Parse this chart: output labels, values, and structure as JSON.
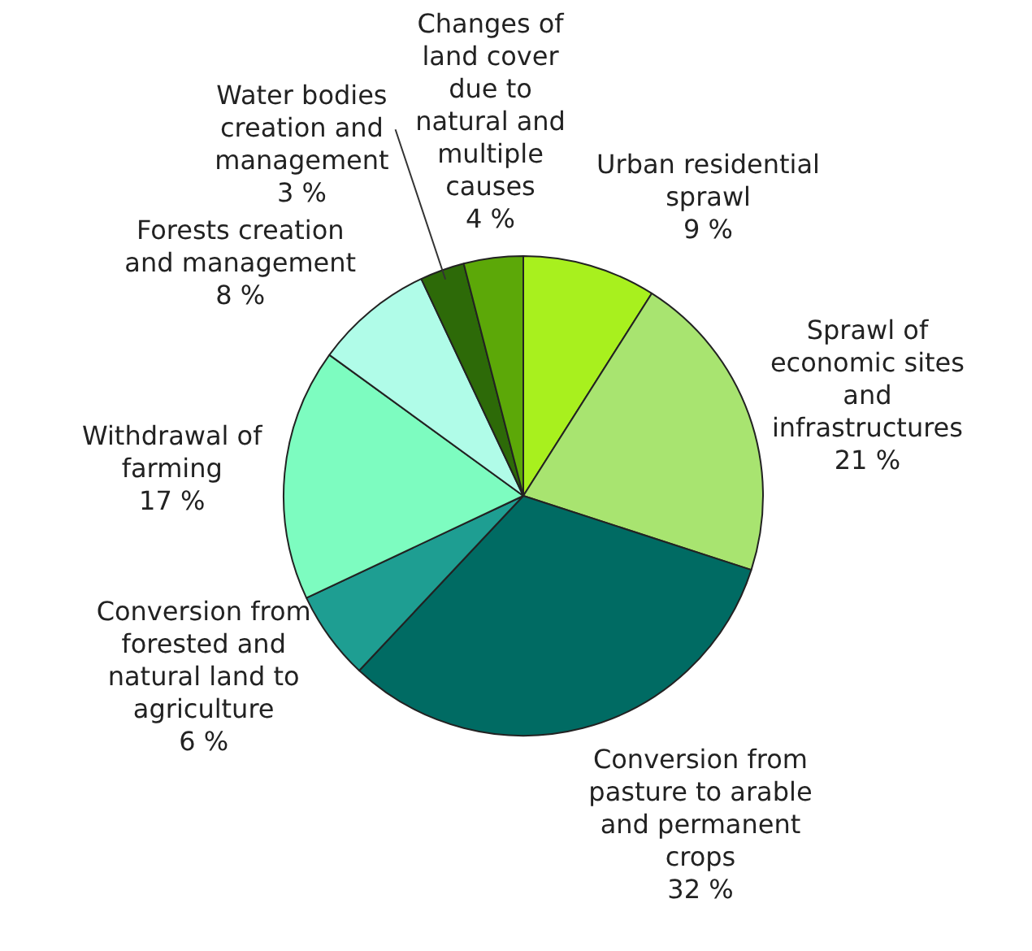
{
  "chart_data": {
    "type": "pie",
    "categories": [
      "Urban residential sprawl",
      "Sprawl of economic sites and infrastructures",
      "Conversion from pasture to arable and permanent crops",
      "Conversion from forested and natural land to agriculture",
      "Withdrawal of farming",
      "Forests creation and management",
      "Water bodies creation and management",
      "Changes of land cover due to natural and multiple causes"
    ],
    "values": [
      9,
      21,
      32,
      6,
      17,
      8,
      3,
      4
    ],
    "value_labels": [
      "9 %",
      "21 %",
      "32 %",
      "6 %",
      "17 %",
      "8 %",
      "3 %",
      "4 %"
    ],
    "colors": [
      "#a8f01e",
      "#a8e470",
      "#006b63",
      "#1e9e92",
      "#7dfcc0",
      "#b0fce8",
      "#2d6a08",
      "#5ca808"
    ],
    "legend": false
  }
}
